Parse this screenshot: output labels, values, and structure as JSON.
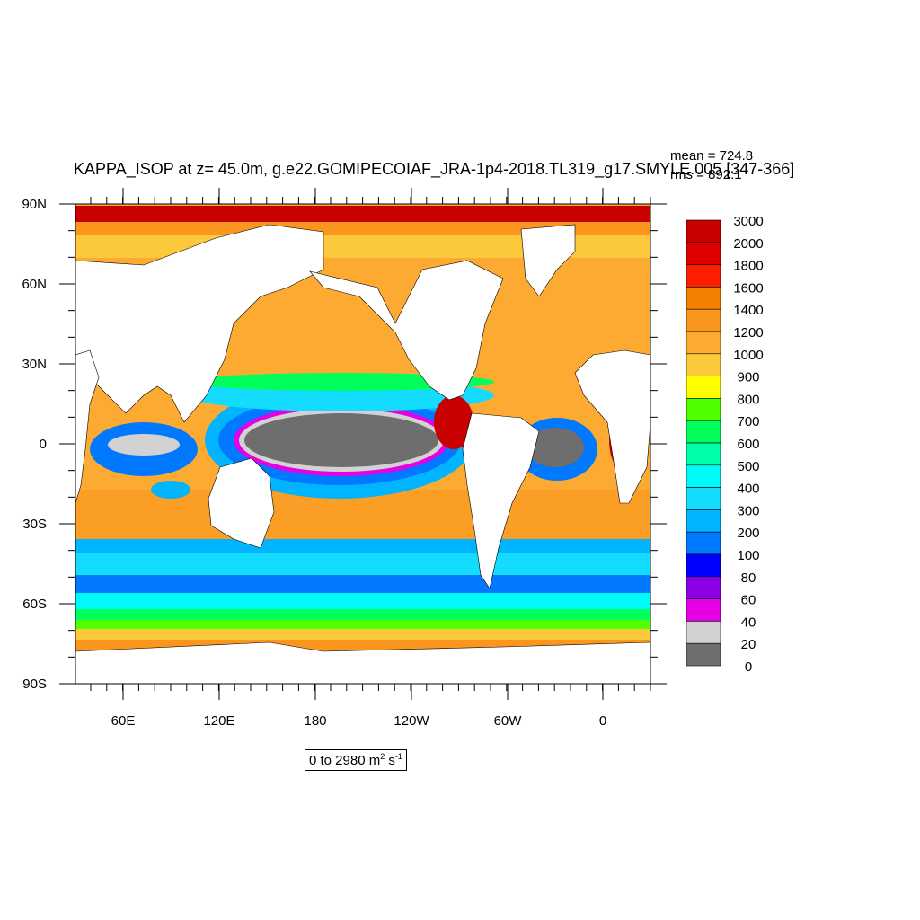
{
  "title": "KAPPA_ISOP at z=  45.0m, g.e22.GOMIPECOIAF_JRA-1p4-2018.TL319_g17.SMYLE.005 [347-366]",
  "stats": {
    "mean": "mean = 724.8",
    "rms": "rms = 892.1"
  },
  "range_label": {
    "prefix": "0 to 2980 m",
    "exp1": "2",
    "mid": " s",
    "exp2": "-1"
  },
  "map": {
    "lat_labels": [
      "90N",
      "60N",
      "30N",
      "0",
      "30S",
      "60S",
      "90S"
    ],
    "lon_labels": [
      "60E",
      "120E",
      "180",
      "120W",
      "60W",
      "0"
    ],
    "land_color": "#ffffff",
    "frame_color": "#000000"
  },
  "colorbar": {
    "labels": [
      "3000",
      "2000",
      "1800",
      "1600",
      "1400",
      "1200",
      "1000",
      "900",
      "800",
      "700",
      "600",
      "500",
      "400",
      "300",
      "200",
      "100",
      "80",
      "60",
      "40",
      "20",
      "0"
    ],
    "colors": [
      "#c80000",
      "#e00000",
      "#ff1e00",
      "#f57f00",
      "#fa961e",
      "#fdaa32",
      "#fcc83c",
      "#ffff00",
      "#50ff00",
      "#00ff5a",
      "#00ffaa",
      "#00fafa",
      "#14dcff",
      "#00b4ff",
      "#0078ff",
      "#0000ff",
      "#8c00e6",
      "#e600e6",
      "#d2d2d2",
      "#6e6e6e"
    ]
  }
}
